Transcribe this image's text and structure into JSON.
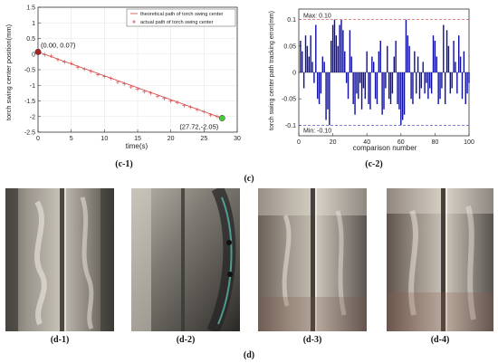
{
  "chart_data": [
    {
      "type": "scatter",
      "xlabel": "time(s)",
      "ylabel": "torch swing center position(mm)",
      "xlim": [
        0,
        30
      ],
      "ylim": [
        -2.5,
        1.5
      ],
      "xticks": [
        0,
        5,
        10,
        15,
        20,
        25,
        30
      ],
      "yticks": [
        1.5,
        1,
        0.5,
        0,
        -0.5,
        -1,
        -1.5,
        -2,
        -2.5
      ],
      "legend_position": "top-right",
      "series": [
        {
          "name": "theoretical path of torch swing center",
          "color": "#d04040",
          "x": [
            0,
            27.72
          ],
          "y": [
            0.07,
            -2.05
          ]
        },
        {
          "name": "actual path of torch swing center",
          "color": "#e05050",
          "marker": "+",
          "x": [
            0,
            1,
            2,
            3,
            4,
            5,
            6,
            7,
            8,
            9,
            10,
            11,
            12,
            13,
            14,
            15,
            16,
            17,
            18,
            19,
            20,
            21,
            22,
            23,
            24,
            25,
            26,
            27,
            27.72
          ],
          "y": [
            0.07,
            -0.02,
            -0.06,
            -0.18,
            -0.25,
            -0.3,
            -0.42,
            -0.48,
            -0.55,
            -0.66,
            -0.72,
            -0.78,
            -0.9,
            -0.95,
            -1.05,
            -1.12,
            -1.2,
            -1.25,
            -1.35,
            -1.42,
            -1.5,
            -1.55,
            -1.65,
            -1.7,
            -1.78,
            -1.85,
            -1.95,
            -2.0,
            -2.05
          ]
        }
      ],
      "annotations": [
        {
          "text": "(0.00, 0.07)",
          "x": 0,
          "y": 0.07,
          "marker_color": "#aa2222"
        },
        {
          "text": "(27.72,-2.05)",
          "x": 27.72,
          "y": -2.05,
          "marker_color": "#44cc33"
        }
      ]
    },
    {
      "type": "bar",
      "xlabel": "comparison number",
      "ylabel": "torch swing center path tracking error(mm)",
      "xlim": [
        0,
        100
      ],
      "ylim": [
        -0.12,
        0.12
      ],
      "xticks": [
        0,
        20,
        40,
        60,
        80,
        100
      ],
      "yticks": [
        0.1,
        0.05,
        0,
        -0.05,
        -0.1
      ],
      "bar_color": "#1010a0",
      "reference_lines": [
        {
          "label": "Max: 0.10",
          "y": 0.1,
          "color": "#d04040"
        },
        {
          "label": "Min: -0.10",
          "y": -0.1,
          "color": "#3030c0"
        }
      ],
      "x": [
        1,
        2,
        3,
        4,
        5,
        6,
        7,
        8,
        9,
        10,
        11,
        12,
        13,
        14,
        15,
        16,
        17,
        18,
        19,
        20,
        21,
        22,
        23,
        24,
        25,
        26,
        27,
        28,
        29,
        30,
        31,
        32,
        33,
        34,
        35,
        36,
        37,
        38,
        39,
        40,
        41,
        42,
        43,
        44,
        45,
        46,
        47,
        48,
        49,
        50,
        51,
        52,
        53,
        54,
        55,
        56,
        57,
        58,
        59,
        60,
        61,
        62,
        63,
        64,
        65,
        66,
        67,
        68,
        69,
        70,
        71,
        72,
        73,
        74,
        75,
        76,
        77,
        78,
        79,
        80,
        81,
        82,
        83,
        84,
        85,
        86,
        87,
        88,
        89,
        90,
        91,
        92,
        93,
        94,
        95,
        96,
        97,
        98,
        99,
        100
      ],
      "values": [
        0.06,
        0.04,
        -0.03,
        0.07,
        0.05,
        0.03,
        0.07,
        0.02,
        -0.02,
        0.09,
        -0.05,
        -0.06,
        -0.04,
        0.03,
        0.02,
        -0.09,
        -0.07,
        -0.1,
        0.06,
        0.09,
        0.1,
        0.07,
        0.05,
        0.09,
        0.1,
        0.08,
        0.04,
        -0.02,
        -0.05,
        0.08,
        0.03,
        -0.06,
        -0.08,
        -0.04,
        -0.05,
        -0.02,
        -0.07,
        -0.03,
        -0.05,
        0.04,
        -0.06,
        -0.07,
        0.03,
        0.02,
        -0.05,
        -0.06,
        0.04,
        0.06,
        -0.08,
        -0.07,
        -0.03,
        0.05,
        -0.05,
        -0.06,
        -0.04,
        0.03,
        0.06,
        -0.06,
        -0.07,
        -0.1,
        -0.09,
        -0.08,
        0.1,
        0.07,
        0.05,
        -0.05,
        -0.06,
        0.04,
        -0.04,
        0.03,
        -0.05,
        -0.03,
        0.02,
        -0.04,
        -0.02,
        -0.05,
        -0.03,
        -0.04,
        0.07,
        0.06,
        0.03,
        -0.06,
        -0.05,
        -0.03,
        0.09,
        -0.06,
        0.08,
        0.05,
        -0.04,
        -0.03,
        0.06,
        0.02,
        -0.04,
        0.07,
        0.03,
        -0.05,
        0.04,
        -0.06,
        -0.04,
        -0.02
      ]
    }
  ],
  "captions": {
    "c1": "(c-1)",
    "c2": "(c-2)",
    "c": "(c)",
    "d1": "(d-1)",
    "d2": "(d-2)",
    "d3": "(d-3)",
    "d4": "(d-4)",
    "d": "(d)"
  },
  "photos": [
    {
      "name": "weld-photo-d1"
    },
    {
      "name": "weld-photo-d2"
    },
    {
      "name": "weld-photo-d3"
    },
    {
      "name": "weld-photo-d4"
    }
  ]
}
